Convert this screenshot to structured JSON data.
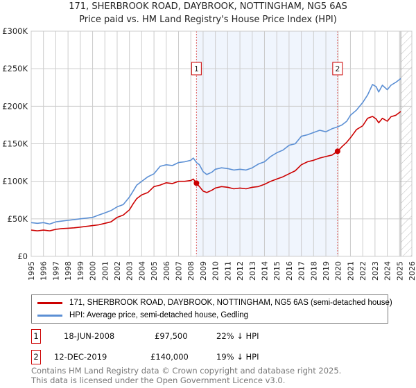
{
  "chart_data": {
    "type": "line",
    "title": "171, SHERBROOK ROAD, DAYBROOK, NOTTINGHAM, NG5 6AS",
    "subtitle": "Price paid vs. HM Land Registry's House Price Index (HPI)",
    "xlim": [
      1995,
      2026
    ],
    "ylim": [
      0,
      300000
    ],
    "x_ticks": [
      "1995",
      "1996",
      "1997",
      "1998",
      "1999",
      "2000",
      "2001",
      "2002",
      "2003",
      "2004",
      "2005",
      "2006",
      "2007",
      "2008",
      "2009",
      "2010",
      "2011",
      "2012",
      "2013",
      "2014",
      "2015",
      "2016",
      "2017",
      "2018",
      "2019",
      "2020",
      "2021",
      "2022",
      "2023",
      "2024",
      "2025",
      "2026"
    ],
    "y_ticks": [
      {
        "v": 0,
        "label": "£0"
      },
      {
        "v": 50000,
        "label": "£50K"
      },
      {
        "v": 100000,
        "label": "£100K"
      },
      {
        "v": 150000,
        "label": "£150K"
      },
      {
        "v": 200000,
        "label": "£200K"
      },
      {
        "v": 250000,
        "label": "£250K"
      },
      {
        "v": 300000,
        "label": "£300K"
      }
    ],
    "grid": true,
    "shaded_period": [
      2008.46,
      2019.95
    ],
    "forecast_hatch_from": 2025.1,
    "series": [
      {
        "name": "171, SHERBROOK ROAD, DAYBROOK, NOTTINGHAM, NG5 6AS (semi-detached house)",
        "color": "#cc0000",
        "x": [
          1995,
          1995.5,
          1996,
          1996.5,
          1997,
          1997.5,
          1998,
          1998.5,
          1999,
          1999.5,
          2000,
          2000.5,
          2001,
          2001.5,
          2002,
          2002.5,
          2003,
          2003.3,
          2003.6,
          2004,
          2004.5,
          2005,
          2005.5,
          2006,
          2006.5,
          2007,
          2007.5,
          2008,
          2008.2,
          2008.46,
          2008.7,
          2009,
          2009.3,
          2009.7,
          2010,
          2010.5,
          2011,
          2011.5,
          2012,
          2012.5,
          2013,
          2013.5,
          2014,
          2014.5,
          2015,
          2015.5,
          2016,
          2016.5,
          2017,
          2017.5,
          2018,
          2018.5,
          2019,
          2019.5,
          2019.95,
          2020.3,
          2020.7,
          2021,
          2021.5,
          2022,
          2022.4,
          2022.8,
          2023.1,
          2023.3,
          2023.6,
          2024,
          2024.3,
          2024.7,
          2025.1
        ],
        "y": [
          35000,
          34000,
          35000,
          34000,
          36000,
          37000,
          37500,
          38000,
          39000,
          40000,
          41000,
          42000,
          44000,
          46000,
          52000,
          55000,
          62000,
          70000,
          77000,
          82000,
          85000,
          93000,
          95000,
          98000,
          97000,
          100000,
          100000,
          101000,
          103000,
          97500,
          93000,
          87000,
          85000,
          88000,
          91000,
          93000,
          92000,
          90000,
          91000,
          90000,
          92000,
          93000,
          96000,
          100000,
          103000,
          106000,
          110000,
          114000,
          122000,
          126000,
          128000,
          131000,
          133000,
          135000,
          140000,
          146000,
          152000,
          158000,
          169000,
          174000,
          184000,
          186500,
          183000,
          178000,
          184000,
          180000,
          186000,
          188000,
          193000
        ]
      },
      {
        "name": "HPI: Average price, semi-detached house, Gedling",
        "color": "#5b8fd4",
        "x": [
          1995,
          1995.5,
          1996,
          1996.5,
          1997,
          1997.5,
          1998,
          1998.5,
          1999,
          1999.5,
          2000,
          2000.5,
          2001,
          2001.5,
          2002,
          2002.5,
          2003,
          2003.3,
          2003.6,
          2004,
          2004.5,
          2005,
          2005.5,
          2006,
          2006.5,
          2007,
          2007.5,
          2008,
          2008.2,
          2008.46,
          2008.7,
          2009,
          2009.3,
          2009.7,
          2010,
          2010.5,
          2011,
          2011.5,
          2012,
          2012.5,
          2013,
          2013.5,
          2014,
          2014.5,
          2015,
          2015.5,
          2016,
          2016.5,
          2017,
          2017.5,
          2018,
          2018.5,
          2019,
          2019.5,
          2019.95,
          2020.3,
          2020.7,
          2021,
          2021.5,
          2022,
          2022.4,
          2022.8,
          2023.1,
          2023.3,
          2023.6,
          2024,
          2024.3,
          2024.7,
          2025.1
        ],
        "y": [
          45000,
          44000,
          45000,
          43000,
          46000,
          47000,
          48000,
          49000,
          50000,
          51000,
          52000,
          55000,
          58000,
          61000,
          66000,
          69000,
          79000,
          87000,
          95000,
          100000,
          106000,
          110000,
          120000,
          122000,
          121000,
          125000,
          126000,
          128000,
          131000,
          125000,
          122000,
          113000,
          109000,
          112000,
          116000,
          118000,
          117000,
          115000,
          116000,
          115000,
          118000,
          123000,
          126000,
          133000,
          138000,
          141500,
          148000,
          150000,
          160000,
          162000,
          165000,
          168000,
          166000,
          170000,
          172500,
          175000,
          180000,
          188000,
          195000,
          205000,
          215000,
          229000,
          226000,
          219000,
          228000,
          222000,
          228000,
          232000,
          237000
        ]
      }
    ],
    "annotations": [
      {
        "label": "1",
        "x": 2008.46,
        "y": 97500
      },
      {
        "label": "2",
        "x": 2019.95,
        "y": 140000
      }
    ]
  },
  "legend": {
    "red": "171, SHERBROOK ROAD, DAYBROOK, NOTTINGHAM, NG5 6AS (semi-detached house)",
    "blue": "HPI: Average price, semi-detached house, Gedling"
  },
  "sales": [
    {
      "num": "1",
      "date": "18-JUN-2008",
      "price": "£97,500",
      "hpi": "22% ↓ HPI"
    },
    {
      "num": "2",
      "date": "12-DEC-2019",
      "price": "£140,000",
      "hpi": "19% ↓ HPI"
    }
  ],
  "footer": {
    "line1": "Contains HM Land Registry data © Crown copyright and database right 2025.",
    "line2": "This data is licensed under the Open Government Licence v3.0."
  }
}
